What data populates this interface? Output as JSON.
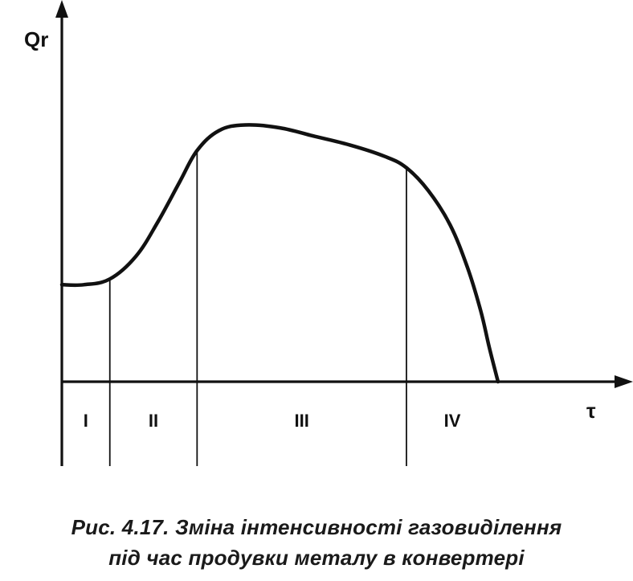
{
  "caption": {
    "line1": "Рис. 4.17. Зміна інтенсивності газовиділення",
    "line2": "під час продувки металу в конвертері"
  },
  "chart_data": {
    "type": "line",
    "ylabel": "Qr",
    "xlabel": "τ",
    "grid": false,
    "legend": "none",
    "axes": "no numeric ticks",
    "stages": [
      {
        "label": "I",
        "start": 0.0,
        "end": 0.11
      },
      {
        "label": "II",
        "start": 0.11,
        "end": 0.31
      },
      {
        "label": "III",
        "start": 0.31,
        "end": 0.79
      },
      {
        "label": "IV",
        "start": 0.79,
        "end": 1.0
      }
    ],
    "series": [
      {
        "x": [
          0.0,
          0.05,
          0.11,
          0.17,
          0.22,
          0.27,
          0.31,
          0.36,
          0.42,
          0.5,
          0.58,
          0.66,
          0.74,
          0.79,
          0.84,
          0.89,
          0.93,
          0.96,
          0.98,
          1.0
        ],
        "values": [
          0.34,
          0.34,
          0.36,
          0.44,
          0.56,
          0.7,
          0.81,
          0.88,
          0.9,
          0.89,
          0.86,
          0.83,
          0.79,
          0.75,
          0.67,
          0.55,
          0.4,
          0.25,
          0.12,
          0.0
        ]
      }
    ],
    "xlim": [
      0,
      1.0
    ],
    "ylim": [
      0,
      1.0
    ]
  },
  "colors": {
    "ink": "#111111"
  }
}
